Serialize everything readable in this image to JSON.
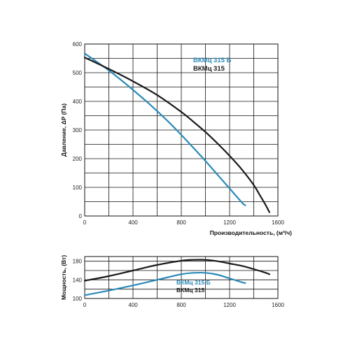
{
  "colors": {
    "series_b": "#2a8ab8",
    "series_main": "#1a1a1a",
    "grid": "#111111"
  },
  "chart_data": [
    {
      "type": "line",
      "title": "",
      "xlabel": "Производительность, (м³/ч)",
      "ylabel": "Давление, ΔP (Па)",
      "xlim": [
        0,
        1600
      ],
      "ylim": [
        0,
        600
      ],
      "xticks": [
        "0",
        "400",
        "800",
        "1200",
        "1600"
      ],
      "yticks": [
        "0",
        "100",
        "200",
        "300",
        "400",
        "500",
        "600"
      ],
      "grid": true,
      "legend_position": "top-right",
      "series": [
        {
          "name": "ВКМц 315 Б",
          "color": "#2a8ab8",
          "x": [
            0,
            100,
            200,
            300,
            400,
            500,
            600,
            700,
            800,
            900,
            1000,
            1100,
            1200,
            1300,
            1330
          ],
          "y": [
            567,
            538,
            508,
            475,
            440,
            404,
            366,
            326,
            283,
            238,
            192,
            144,
            96,
            48,
            37
          ]
        },
        {
          "name": "ВКМц 315",
          "color": "#1a1a1a",
          "x": [
            0,
            200,
            400,
            600,
            800,
            900,
            1000,
            1100,
            1200,
            1300,
            1400,
            1450,
            1500,
            1530
          ],
          "y": [
            553,
            513,
            470,
            422,
            363,
            329,
            293,
            253,
            210,
            163,
            108,
            73,
            37,
            13
          ]
        }
      ]
    },
    {
      "type": "line",
      "title": "",
      "xlabel": "",
      "ylabel": "Мощность, (Вт)",
      "xlim": [
        0,
        1600
      ],
      "ylim": [
        100,
        190
      ],
      "xticks": [
        "0",
        "400",
        "800",
        "1200",
        "1600"
      ],
      "yticks": [
        "100",
        "140",
        "180"
      ],
      "grid": true,
      "legend_position": "bottom-center",
      "series": [
        {
          "name": "ВКМц 315 Б",
          "color": "#2a8ab8",
          "x": [
            0,
            200,
            400,
            600,
            800,
            900,
            1000,
            1100,
            1200,
            1300,
            1330
          ],
          "y": [
            107,
            117,
            128,
            140,
            152,
            155,
            155,
            151,
            143,
            135,
            133
          ]
        },
        {
          "name": "ВКМц 315",
          "color": "#1a1a1a",
          "x": [
            0,
            200,
            400,
            600,
            800,
            900,
            1000,
            1100,
            1200,
            1300,
            1400,
            1500,
            1530
          ],
          "y": [
            138,
            148,
            160,
            172,
            181,
            183,
            183,
            180,
            175,
            170,
            163,
            155,
            152
          ]
        }
      ]
    }
  ]
}
